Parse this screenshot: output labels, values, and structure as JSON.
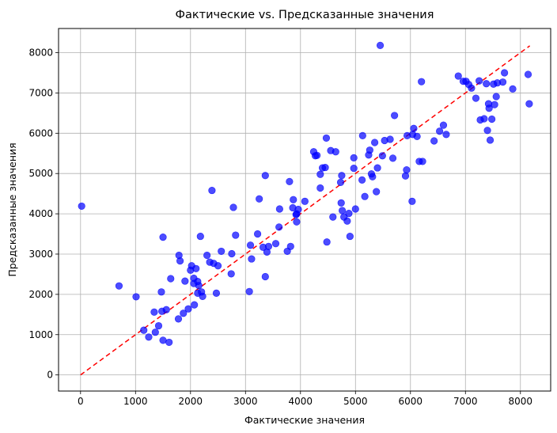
{
  "chart_data": {
    "type": "scatter",
    "title": "Фактические vs. Предсказанные значения",
    "xlabel": "Фактические значения",
    "ylabel": "Предсказанные значения",
    "xlim": [
      -400,
      8550
    ],
    "ylim": [
      -400,
      8600
    ],
    "x_ticks": [
      0,
      1000,
      2000,
      3000,
      4000,
      5000,
      6000,
      7000,
      8000
    ],
    "y_ticks": [
      0,
      1000,
      2000,
      3000,
      4000,
      5000,
      6000,
      7000,
      8000
    ],
    "grid": true,
    "point_color": "#0000ff",
    "line_color": "#ff0000",
    "reference_line": {
      "x": [
        0,
        8170
      ],
      "y": [
        0,
        8170
      ],
      "style": "dashed"
    },
    "points": [
      [
        20,
        4190
      ],
      [
        700,
        2210
      ],
      [
        1010,
        1940
      ],
      [
        1150,
        1110
      ],
      [
        1240,
        940
      ],
      [
        1340,
        1560
      ],
      [
        1360,
        1060
      ],
      [
        1420,
        1220
      ],
      [
        1470,
        2060
      ],
      [
        1480,
        1580
      ],
      [
        1500,
        3420
      ],
      [
        1500,
        860
      ],
      [
        1560,
        1620
      ],
      [
        1610,
        810
      ],
      [
        1640,
        2390
      ],
      [
        1780,
        1390
      ],
      [
        1790,
        2970
      ],
      [
        1810,
        2830
      ],
      [
        1870,
        1530
      ],
      [
        1900,
        2330
      ],
      [
        1960,
        1640
      ],
      [
        2000,
        2600
      ],
      [
        2020,
        2710
      ],
      [
        2060,
        2400
      ],
      [
        2060,
        2270
      ],
      [
        2070,
        1740
      ],
      [
        2100,
        2640
      ],
      [
        2130,
        2320
      ],
      [
        2130,
        2030
      ],
      [
        2150,
        2220
      ],
      [
        2180,
        3440
      ],
      [
        2200,
        2060
      ],
      [
        2220,
        1950
      ],
      [
        2300,
        2970
      ],
      [
        2350,
        2800
      ],
      [
        2390,
        4580
      ],
      [
        2420,
        2770
      ],
      [
        2470,
        2030
      ],
      [
        2500,
        2710
      ],
      [
        2560,
        3070
      ],
      [
        2740,
        2510
      ],
      [
        2750,
        3010
      ],
      [
        2780,
        4160
      ],
      [
        2820,
        3470
      ],
      [
        3070,
        2070
      ],
      [
        3090,
        3220
      ],
      [
        3110,
        2880
      ],
      [
        3220,
        3500
      ],
      [
        3250,
        4370
      ],
      [
        3320,
        3170
      ],
      [
        3360,
        2440
      ],
      [
        3360,
        4950
      ],
      [
        3390,
        3050
      ],
      [
        3420,
        3190
      ],
      [
        3550,
        3260
      ],
      [
        3610,
        3670
      ],
      [
        3620,
        4120
      ],
      [
        3760,
        3070
      ],
      [
        3800,
        4800
      ],
      [
        3820,
        3190
      ],
      [
        3860,
        4150
      ],
      [
        3870,
        4350
      ],
      [
        3920,
        3980
      ],
      [
        3930,
        4000
      ],
      [
        3930,
        3800
      ],
      [
        3960,
        4110
      ],
      [
        4080,
        4310
      ],
      [
        4240,
        5540
      ],
      [
        4270,
        5440
      ],
      [
        4300,
        5450
      ],
      [
        4360,
        4640
      ],
      [
        4360,
        4980
      ],
      [
        4400,
        5140
      ],
      [
        4450,
        5150
      ],
      [
        4470,
        5880
      ],
      [
        4480,
        3300
      ],
      [
        4550,
        5570
      ],
      [
        4590,
        3920
      ],
      [
        4640,
        5540
      ],
      [
        4730,
        4780
      ],
      [
        4740,
        4270
      ],
      [
        4750,
        4950
      ],
      [
        4760,
        4080
      ],
      [
        4790,
        3920
      ],
      [
        4850,
        3820
      ],
      [
        4880,
        4010
      ],
      [
        4900,
        3440
      ],
      [
        4970,
        5390
      ],
      [
        4970,
        5130
      ],
      [
        5000,
        4120
      ],
      [
        5120,
        4840
      ],
      [
        5130,
        5940
      ],
      [
        5170,
        4430
      ],
      [
        5240,
        5460
      ],
      [
        5260,
        5580
      ],
      [
        5290,
        4990
      ],
      [
        5310,
        4920
      ],
      [
        5350,
        5770
      ],
      [
        5380,
        4550
      ],
      [
        5400,
        5140
      ],
      [
        5450,
        8180
      ],
      [
        5490,
        5440
      ],
      [
        5530,
        5820
      ],
      [
        5630,
        5850
      ],
      [
        5680,
        5380
      ],
      [
        5710,
        6440
      ],
      [
        5910,
        4940
      ],
      [
        5930,
        5090
      ],
      [
        5940,
        5940
      ],
      [
        6030,
        4310
      ],
      [
        6040,
        5970
      ],
      [
        6060,
        6120
      ],
      [
        6120,
        5920
      ],
      [
        6160,
        5300
      ],
      [
        6200,
        7280
      ],
      [
        6220,
        5300
      ],
      [
        6430,
        5810
      ],
      [
        6530,
        6050
      ],
      [
        6600,
        6200
      ],
      [
        6650,
        5970
      ],
      [
        6870,
        7420
      ],
      [
        6960,
        7290
      ],
      [
        7010,
        7290
      ],
      [
        7060,
        7210
      ],
      [
        7110,
        7120
      ],
      [
        7190,
        6870
      ],
      [
        7250,
        7300
      ],
      [
        7270,
        6330
      ],
      [
        7340,
        6360
      ],
      [
        7380,
        7230
      ],
      [
        7400,
        6070
      ],
      [
        7420,
        6730
      ],
      [
        7430,
        6620
      ],
      [
        7450,
        5830
      ],
      [
        7480,
        6350
      ],
      [
        7510,
        7220
      ],
      [
        7530,
        6710
      ],
      [
        7560,
        6910
      ],
      [
        7580,
        7250
      ],
      [
        7680,
        7270
      ],
      [
        7710,
        7500
      ],
      [
        7860,
        7100
      ],
      [
        8140,
        7460
      ],
      [
        8160,
        6730
      ]
    ]
  }
}
